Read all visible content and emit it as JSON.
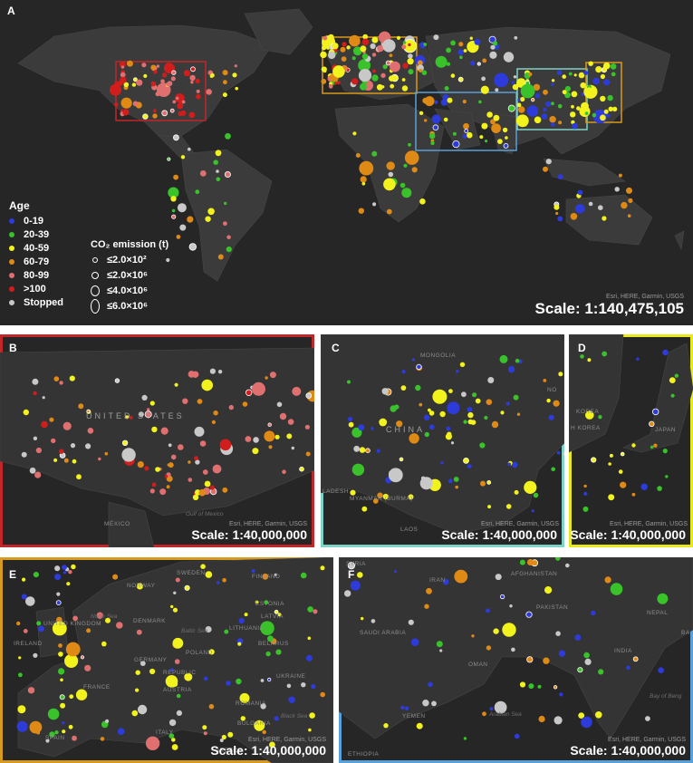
{
  "panels": {
    "A": {
      "label": "A",
      "scale": "Scale: 1:140,475,105",
      "attribution": "Esri, HERE, Garmin, USGS"
    },
    "B": {
      "label": "B",
      "scale": "Scale: 1:40,000,000",
      "attribution": "Esri, HERE, Garmin, USGS",
      "border": "#c0262a",
      "places": [
        "UNITED STATES",
        "MÉXICO",
        "Gulf of Mexico"
      ]
    },
    "C": {
      "label": "C",
      "scale": "Scale: 1:40,000,000",
      "attribution": "Esri, HERE, Garmin, USGS",
      "border": "#7fd3c6",
      "places": [
        "MONGOLIA",
        "CHINA",
        "MYANMAR (BURMA)",
        "LAOS",
        "LADESH",
        "NO"
      ]
    },
    "D": {
      "label": "D",
      "scale": "Scale: 1:40,000,000",
      "attribution": "Esri, HERE, Garmin, USGS",
      "border": "#e8e81a",
      "places": [
        "KOREA",
        "H KOREA",
        "JAPAN"
      ]
    },
    "E": {
      "label": "E",
      "scale": "Scale: 1:40,000,000",
      "attribution": "Esri, HERE, Garmin, USGS",
      "border": "#d79a1e",
      "places": [
        "SWEDEN",
        "FINLAND",
        "NORWAY",
        "ESTONIA",
        "LATVIA",
        "LITHUANIA",
        "DENMARK",
        "Baltic Sea",
        "North Sea",
        "BELARUS",
        "IRELAND",
        "UNITED KINGDOM",
        "GERMANY",
        "POLAND",
        "REPUBLIC",
        "FRANCE",
        "AUSTRIA",
        "UKRAINE",
        "ROMANIA",
        "BULGARIA",
        "Black Sea",
        "ITALY",
        "GREECE",
        "SPAIN"
      ]
    },
    "F": {
      "label": "F",
      "scale": "Scale: 1:40,000,000",
      "attribution": "Esri, HERE, Garmin, USGS",
      "border": "#5aa0d8",
      "places": [
        "SYRIA",
        "IRAN",
        "AFGHANISTAN",
        "PAKISTAN",
        "NEPAL",
        "SAUDI ARABIA",
        "OMAN",
        "INDIA",
        "YEMEN",
        "Arabian Sea",
        "Bay of Beng",
        "ETHIOPIA",
        "BA"
      ]
    }
  },
  "legend": {
    "age_title": "Age",
    "age_items": [
      {
        "label": "0-19",
        "color": "#2e3bdb"
      },
      {
        "label": "20-39",
        "color": "#39c22a"
      },
      {
        "label": "40-59",
        "color": "#f2f21c"
      },
      {
        "label": "60-79",
        "color": "#e08a16"
      },
      {
        "label": "80-99",
        "color": "#e07070"
      },
      {
        "label": ">100",
        "color": "#d21d1d"
      },
      {
        "label": "Stopped",
        "color": "#c8c8c8"
      }
    ],
    "co2_title": "CO₂ emission (t)",
    "co2_items": [
      "≤2.0×10²",
      "≤2.0×10⁶",
      "≤4.0×10⁶",
      "≤6.0×10⁶"
    ]
  },
  "colors": {
    "ocean": "#262626",
    "land": "#3a3a3a",
    "border_lines": "#4a4a4a"
  }
}
